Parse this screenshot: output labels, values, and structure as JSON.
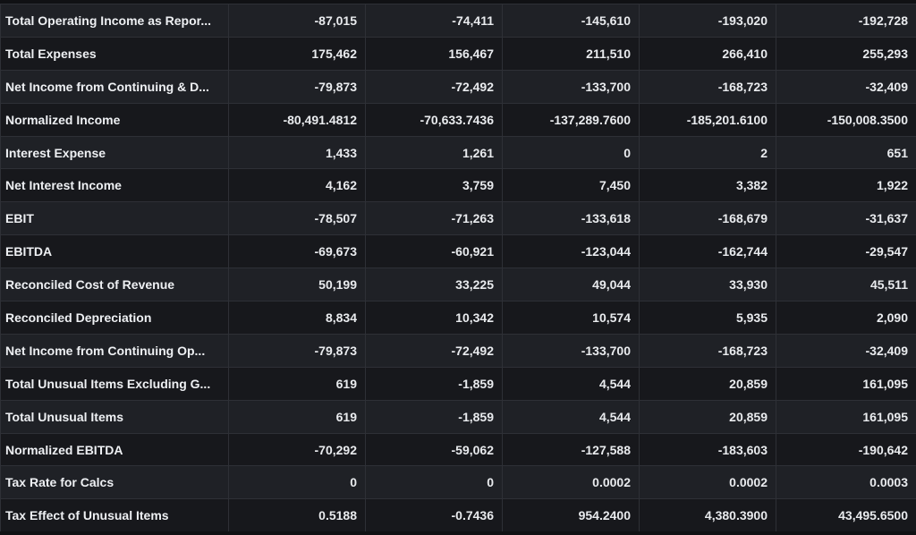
{
  "table": {
    "rows": [
      {
        "label": "Total Operating Income as Repor...",
        "values": [
          "-87,015",
          "-74,411",
          "-145,610",
          "-193,020",
          "-192,728"
        ]
      },
      {
        "label": "Total Expenses",
        "values": [
          "175,462",
          "156,467",
          "211,510",
          "266,410",
          "255,293"
        ]
      },
      {
        "label": "Net Income from Continuing & D...",
        "values": [
          "-79,873",
          "-72,492",
          "-133,700",
          "-168,723",
          "-32,409"
        ]
      },
      {
        "label": "Normalized Income",
        "values": [
          "-80,491.4812",
          "-70,633.7436",
          "-137,289.7600",
          "-185,201.6100",
          "-150,008.3500"
        ]
      },
      {
        "label": "Interest Expense",
        "values": [
          "1,433",
          "1,261",
          "0",
          "2",
          "651"
        ]
      },
      {
        "label": "Net Interest Income",
        "values": [
          "4,162",
          "3,759",
          "7,450",
          "3,382",
          "1,922"
        ]
      },
      {
        "label": "EBIT",
        "values": [
          "-78,507",
          "-71,263",
          "-133,618",
          "-168,679",
          "-31,637"
        ]
      },
      {
        "label": "EBITDA",
        "values": [
          "-69,673",
          "-60,921",
          "-123,044",
          "-162,744",
          "-29,547"
        ]
      },
      {
        "label": "Reconciled Cost of Revenue",
        "values": [
          "50,199",
          "33,225",
          "49,044",
          "33,930",
          "45,511"
        ]
      },
      {
        "label": "Reconciled Depreciation",
        "values": [
          "8,834",
          "10,342",
          "10,574",
          "5,935",
          "2,090"
        ]
      },
      {
        "label": "Net Income from Continuing Op...",
        "values": [
          "-79,873",
          "-72,492",
          "-133,700",
          "-168,723",
          "-32,409"
        ]
      },
      {
        "label": "Total Unusual Items Excluding G...",
        "values": [
          "619",
          "-1,859",
          "4,544",
          "20,859",
          "161,095"
        ]
      },
      {
        "label": "Total Unusual Items",
        "values": [
          "619",
          "-1,859",
          "4,544",
          "20,859",
          "161,095"
        ]
      },
      {
        "label": "Normalized EBITDA",
        "values": [
          "-70,292",
          "-59,062",
          "-127,588",
          "-183,603",
          "-190,642"
        ]
      },
      {
        "label": "Tax Rate for Calcs",
        "values": [
          "0",
          "0",
          "0.0002",
          "0.0002",
          "0.0003"
        ]
      },
      {
        "label": "Tax Effect of Unusual Items",
        "values": [
          "0.5188",
          "-0.7436",
          "954.2400",
          "4,380.3900",
          "43,495.6500"
        ]
      }
    ]
  }
}
